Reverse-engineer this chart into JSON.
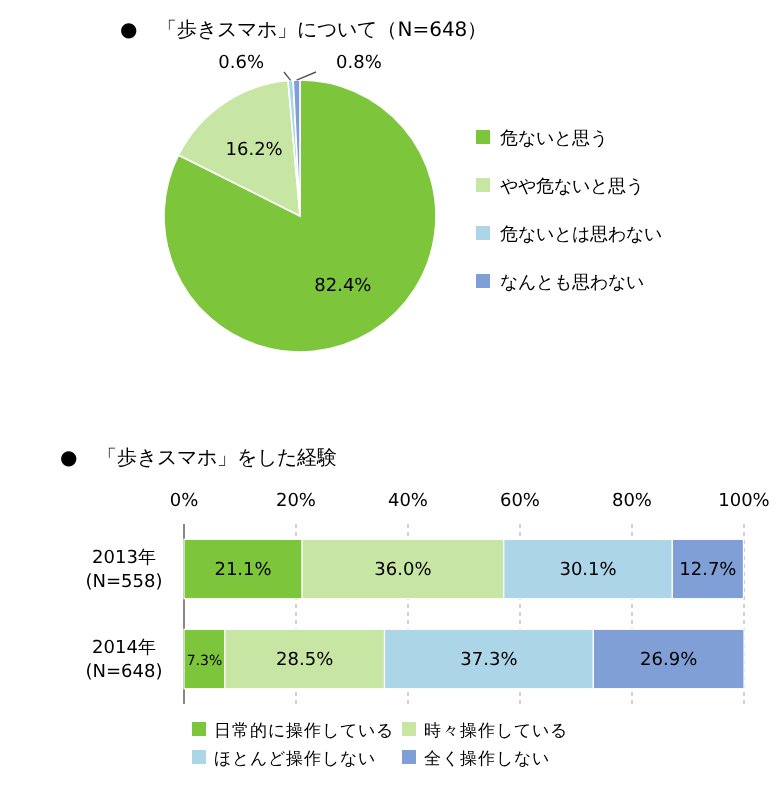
{
  "chart_data": [
    {
      "type": "pie",
      "title": "●　「歩きスマホ」について（N=648）",
      "categories": [
        "危ないと思う",
        "やや危ないと思う",
        "危ないとは思わない",
        "なんとも思わない"
      ],
      "values": [
        82.4,
        16.2,
        0.6,
        0.8
      ],
      "colors": [
        "#7dc63b",
        "#c8e6a3",
        "#acd6e8",
        "#7f9fd6"
      ],
      "value_labels": [
        "82.4%",
        "16.2%",
        "0.6%",
        "0.8%"
      ],
      "legend": "right"
    },
    {
      "type": "bar",
      "orientation": "horizontal",
      "stacked": true,
      "title": "●　「歩きスマホ」をした経験",
      "categories": [
        "2013年\n(N=558)",
        "2014年\n(N=648)"
      ],
      "series": [
        {
          "name": "日常的に操作している",
          "color": "#7dc63b",
          "values": [
            21.1,
            7.3
          ],
          "value_labels": [
            "21.1%",
            "7.3%"
          ]
        },
        {
          "name": "時々操作している",
          "color": "#c8e6a3",
          "values": [
            36.0,
            28.5
          ],
          "value_labels": [
            "36.0%",
            "28.5%"
          ]
        },
        {
          "name": "ほとんど操作しない",
          "color": "#acd6e8",
          "values": [
            30.1,
            37.3
          ],
          "value_labels": [
            "30.1%",
            "37.3%"
          ]
        },
        {
          "name": "全く操作しない",
          "color": "#7f9fd6",
          "values": [
            12.7,
            26.9
          ],
          "value_labels": [
            "12.7%",
            "26.9%"
          ]
        }
      ],
      "xlim": [
        0,
        100
      ],
      "xticks": [
        {
          "value": 0,
          "label": "0%"
        },
        {
          "value": 20,
          "label": "20%"
        },
        {
          "value": 40,
          "label": "40%"
        },
        {
          "value": 60,
          "label": "60%"
        },
        {
          "value": 80,
          "label": "80%"
        },
        {
          "value": 100,
          "label": "100%"
        }
      ],
      "grid": "x",
      "legend": "bottom"
    }
  ]
}
